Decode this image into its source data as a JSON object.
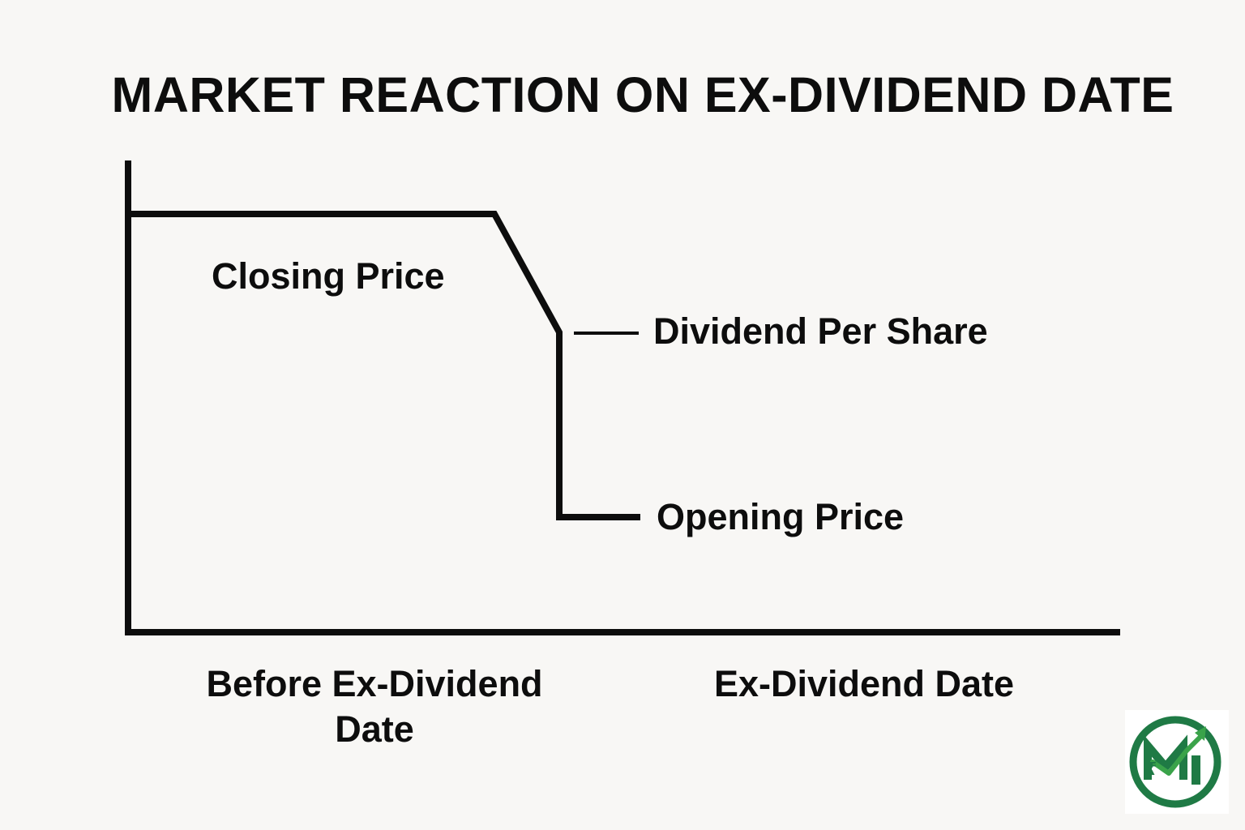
{
  "title": "MARKET REACTION ON EX-DIVIDEND DATE",
  "labels": {
    "closing_price": "Closing Price",
    "dividend_per_share": "Dividend Per Share",
    "opening_price": "Opening Price"
  },
  "x_labels": {
    "before_ex_dividend_date": "Before Ex-Dividend Date",
    "ex_dividend_date": "Ex-Dividend Date"
  },
  "logo": {
    "icon": "rupee-growth-logo-icon",
    "colors": {
      "green": "#1f7a45",
      "arrow_green": "#3aa34a"
    }
  },
  "colors": {
    "background": "#f8f7f5",
    "line": "#0d0d0d"
  }
}
